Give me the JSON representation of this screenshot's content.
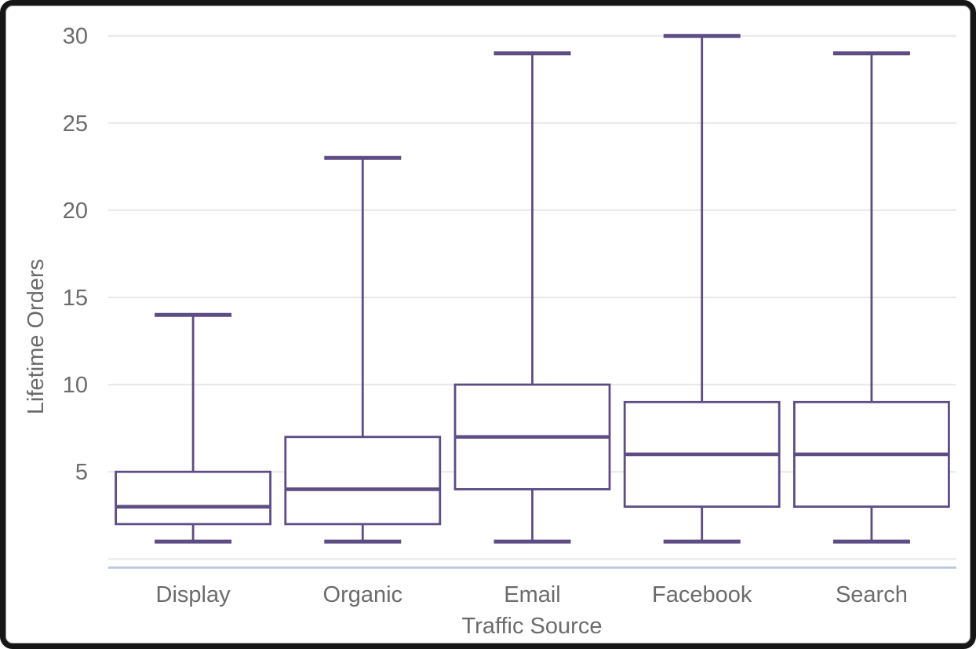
{
  "chart_data": {
    "type": "boxplot",
    "title": "",
    "xlabel": "Traffic Source",
    "ylabel": "Lifetime Orders",
    "categories": [
      "Display",
      "Organic",
      "Email",
      "Facebook",
      "Search"
    ],
    "series": [
      {
        "name": "Display",
        "min": 1,
        "q1": 2,
        "median": 3,
        "q3": 5,
        "max": 14
      },
      {
        "name": "Organic",
        "min": 1,
        "q1": 2,
        "median": 4,
        "q3": 7,
        "max": 23
      },
      {
        "name": "Email",
        "min": 1,
        "q1": 4,
        "median": 7,
        "q3": 10,
        "max": 29
      },
      {
        "name": "Facebook",
        "min": 1,
        "q1": 3,
        "median": 6,
        "q3": 9,
        "max": 30
      },
      {
        "name": "Search",
        "min": 1,
        "q1": 3,
        "median": 6,
        "q3": 9,
        "max": 29
      }
    ],
    "ylim": [
      0,
      30
    ],
    "ytick_step": 5,
    "yticks_labeled": [
      5,
      10,
      15,
      20,
      25,
      30
    ],
    "grid": true,
    "legend": "none",
    "colors": {
      "box_stroke": "#5e4c85",
      "box_fill": "#ffffff",
      "gridline": "#e7e7e7",
      "axis_line": "#b9c8e0",
      "text": "#6b6b6b",
      "background": "#ffffff",
      "frame_border": "#161616"
    }
  }
}
